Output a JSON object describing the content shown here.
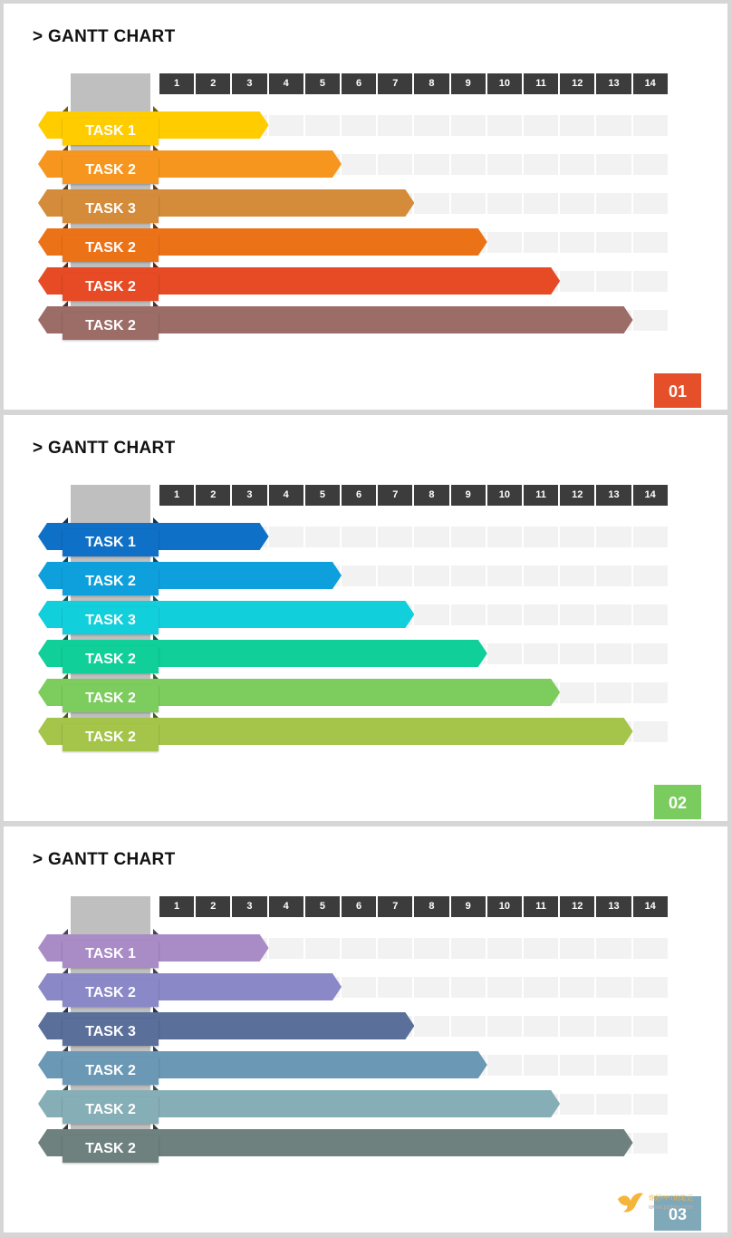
{
  "slides": [
    {
      "title": "> GANTT CHART",
      "page_number": "01",
      "page_color": "#e5502a",
      "chart_data": {
        "type": "bar",
        "orientation": "horizontal",
        "x_ticks": [
          "1",
          "2",
          "3",
          "4",
          "5",
          "6",
          "7",
          "8",
          "9",
          "10",
          "11",
          "12",
          "13",
          "14"
        ],
        "categories": [
          "TASK 1",
          "TASK 2",
          "TASK 3",
          "TASK 2",
          "TASK 2",
          "TASK 2"
        ],
        "values": [
          3,
          5,
          7,
          9,
          11,
          13
        ],
        "xlim": [
          0,
          14
        ],
        "colors": [
          "#ffcc00",
          "#f7961e",
          "#d48b3a",
          "#ec7217",
          "#e64b25",
          "#9c6c67"
        ]
      }
    },
    {
      "title": "> GANTT CHART",
      "page_number": "02",
      "page_color": "#7bcc5e",
      "chart_data": {
        "type": "bar",
        "orientation": "horizontal",
        "x_ticks": [
          "1",
          "2",
          "3",
          "4",
          "5",
          "6",
          "7",
          "8",
          "9",
          "10",
          "11",
          "12",
          "13",
          "14"
        ],
        "categories": [
          "TASK 1",
          "TASK 2",
          "TASK 3",
          "TASK 2",
          "TASK 2",
          "TASK 2"
        ],
        "values": [
          3,
          5,
          7,
          9,
          11,
          13
        ],
        "xlim": [
          0,
          14
        ],
        "colors": [
          "#0f70c7",
          "#0ea0dc",
          "#12cfdc",
          "#11cf99",
          "#7ccc5e",
          "#a4c44a"
        ]
      }
    },
    {
      "title": "> GANTT CHART",
      "page_number": "03",
      "page_color": "#7fa8b8",
      "chart_data": {
        "type": "bar",
        "orientation": "horizontal",
        "x_ticks": [
          "1",
          "2",
          "3",
          "4",
          "5",
          "6",
          "7",
          "8",
          "9",
          "10",
          "11",
          "12",
          "13",
          "14"
        ],
        "categories": [
          "TASK 1",
          "TASK 2",
          "TASK 3",
          "TASK 2",
          "TASK 2",
          "TASK 2"
        ],
        "values": [
          3,
          5,
          7,
          9,
          11,
          13
        ],
        "xlim": [
          0,
          14
        ],
        "colors": [
          "#a98bc6",
          "#8b88c8",
          "#5a6f9a",
          "#6b98b5",
          "#86aeb6",
          "#6e817f"
        ]
      }
    }
  ],
  "watermark": {
    "line1": "你好PPT的笔记",
    "line2": "www.ppfan.com",
    "icon": "bird-logo-icon"
  }
}
